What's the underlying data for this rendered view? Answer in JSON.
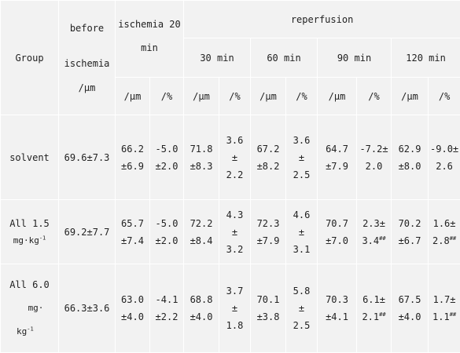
{
  "header": {
    "group": "Group",
    "before_l1": "before",
    "before_l2": "ischemia",
    "isch_l1": "ischemia 20",
    "isch_l2": "min",
    "reperfusion": "reperfusion",
    "times": [
      "30 min",
      "60 min",
      "90 min",
      "120 min"
    ],
    "before_unit": "/μm",
    "unit_um": "/μm",
    "unit_pct": "/%"
  },
  "rows": [
    {
      "group_l1": "solvent",
      "before": "69.6±7.3",
      "isch_um": [
        "66.2",
        "±6.9"
      ],
      "isch_pct": [
        "-5.0",
        "±2.0"
      ],
      "r30_um": [
        "71.8",
        "±8.3"
      ],
      "r30_pct": [
        "3.6",
        "±",
        "2.2"
      ],
      "r60_um": [
        "67.2",
        "±8.2"
      ],
      "r60_pct": [
        "3.6",
        "±",
        "2.5"
      ],
      "r90_um": [
        "64.7",
        "±7.9"
      ],
      "r90_pct": [
        "-7.2±",
        "2.0"
      ],
      "r120_um": [
        "62.9",
        "±8.0"
      ],
      "r120_pct": [
        "-9.0±",
        "2.6"
      ]
    },
    {
      "group_l1": "All 1.5",
      "group_l2": "mg·kg",
      "group_sup": "-1",
      "before": "69.2±7.7",
      "isch_um": [
        "65.7",
        "±7.4"
      ],
      "isch_pct": [
        "-5.0",
        "±2.0"
      ],
      "r30_um": [
        "72.2",
        "±8.4"
      ],
      "r30_pct": [
        "4.3",
        "±",
        "3.2"
      ],
      "r60_um": [
        "72.3",
        "±7.9"
      ],
      "r60_pct": [
        "4.6",
        "±",
        "3.1"
      ],
      "r90_um": [
        "70.7",
        "±7.0"
      ],
      "r90_pct_l1": "2.3±",
      "r90_pct_l2": "3.4",
      "r90_pct_sup": "##",
      "r120_um": [
        "70.2",
        "±6.7"
      ],
      "r120_pct_l1": "1.6±",
      "r120_pct_l2": "2.8",
      "r120_pct_sup": "##"
    },
    {
      "group_l1": "All 6.0",
      "group_l2": "mg·",
      "group_l3": "kg",
      "group_sup": "-1",
      "before": "66.3±3.6",
      "isch_um": [
        "63.0",
        "±4.0"
      ],
      "isch_pct": [
        "-4.1",
        "±2.2"
      ],
      "r30_um": [
        "68.8",
        "±4.0"
      ],
      "r30_pct": [
        "3.7",
        "±",
        "1.8"
      ],
      "r60_um": [
        "70.1",
        "±3.8"
      ],
      "r60_pct": [
        "5.8",
        "±",
        "2.5"
      ],
      "r90_um": [
        "70.3",
        "±4.1"
      ],
      "r90_pct_l1": "6.1±",
      "r90_pct_l2": "2.1",
      "r90_pct_sup": "##",
      "r120_um": [
        "67.5",
        "±4.0"
      ],
      "r120_pct_l1": "1.7±",
      "r120_pct_l2": "1.1",
      "r120_pct_sup": "##"
    }
  ]
}
